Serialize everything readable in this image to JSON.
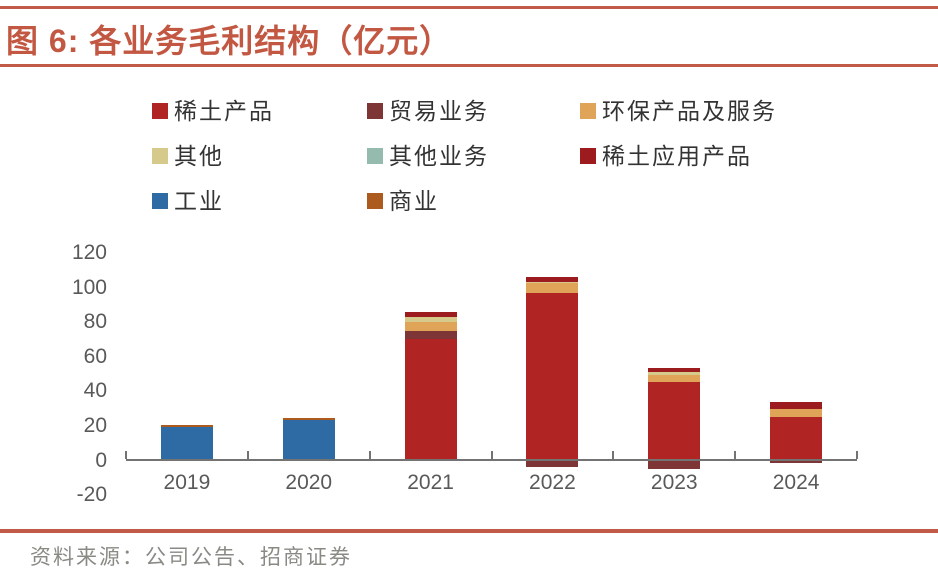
{
  "figure": {
    "title": "图 6: 各业务毛利结构（亿元）",
    "source": "资料来源：公司公告、招商证券"
  },
  "colors": {
    "accent_rule": "#C15B48",
    "title_text": "#C25742",
    "axis_line": "#737373",
    "tick": "#737373",
    "axis_label": "#595959",
    "legend_text": "#333333",
    "source_text": "#8A8A85"
  },
  "chart_data": {
    "type": "bar",
    "stacked": true,
    "title": "各业务毛利结构（亿元）",
    "unit": "亿元",
    "grid": false,
    "legend_position": "top",
    "categories": [
      "2019",
      "2020",
      "2021",
      "2022",
      "2023",
      "2024"
    ],
    "series": [
      {
        "name": "稀土产品",
        "color": "#B02423",
        "values": [
          0,
          0,
          70,
          96.5,
          45,
          25
        ]
      },
      {
        "name": "贸易业务",
        "color": "#7E3536",
        "values": [
          0,
          0,
          4.5,
          -4,
          -5.5,
          -2
        ]
      },
      {
        "name": "环保产品及服务",
        "color": "#E0A458",
        "values": [
          0,
          0,
          5.5,
          6,
          4.5,
          4.3
        ]
      },
      {
        "name": "其他",
        "color": "#D6C98C",
        "values": [
          0,
          0,
          3,
          0.8,
          1.2,
          0
        ]
      },
      {
        "name": "其他业务",
        "color": "#95BBAF",
        "values": [
          0,
          0,
          0,
          0,
          0,
          0
        ]
      },
      {
        "name": "稀土应用产品",
        "color": "#9C1B1E",
        "values": [
          0,
          0,
          2.5,
          2.5,
          2.5,
          4.4
        ]
      },
      {
        "name": "工业",
        "color": "#2E6BA4",
        "values": [
          19,
          23,
          0,
          0,
          0,
          0
        ]
      },
      {
        "name": "商业",
        "color": "#AC5A1E",
        "values": [
          1.5,
          1.5,
          0,
          0,
          0,
          0
        ]
      }
    ],
    "stack_totals": [
      20.5,
      24.5,
      85.5,
      105.8,
      53.2,
      33.7
    ],
    "ylim": [
      -20,
      120
    ],
    "yticks": [
      120,
      100,
      80,
      60,
      40,
      20,
      0,
      -20
    ]
  }
}
